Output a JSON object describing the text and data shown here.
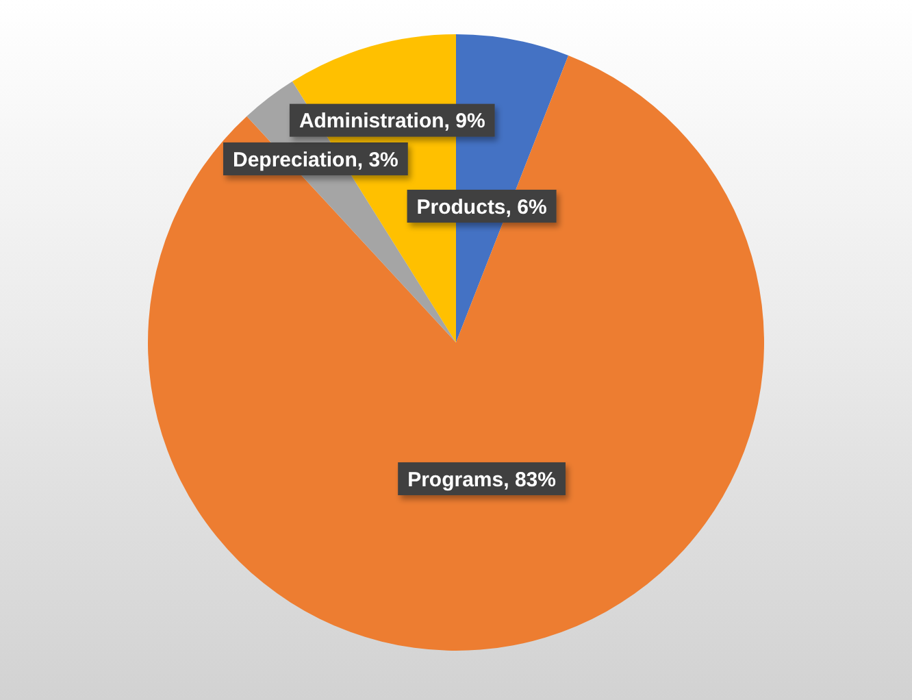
{
  "chart_data": {
    "type": "pie",
    "categories": [
      "Products",
      "Programs",
      "Depreciation",
      "Administration"
    ],
    "values": [
      6,
      83,
      3,
      9
    ],
    "colors": [
      "#4472c4",
      "#ed7d31",
      "#a5a5a5",
      "#ffc000"
    ],
    "value_labels": [
      "6%",
      "83%",
      "3%",
      "9%"
    ]
  }
}
